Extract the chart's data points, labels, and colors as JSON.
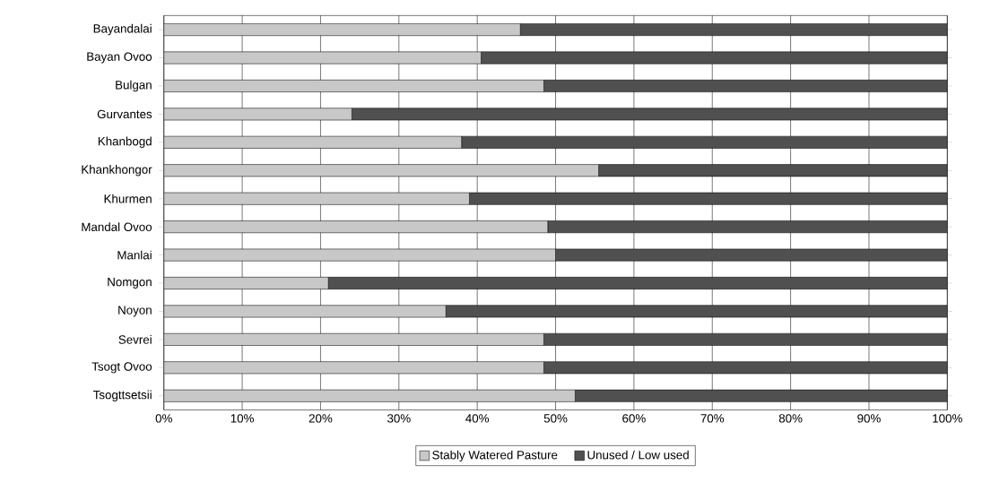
{
  "chart_data": {
    "type": "bar",
    "orientation": "horizontal",
    "stacked": true,
    "categories": [
      "Bayandalai",
      "Bayan Ovoo",
      "Bulgan",
      "Gurvantes",
      "Khanbogd",
      "Khankhongor",
      "Khurmen",
      "Mandal Ovoo",
      "Manlai",
      "Nomgon",
      "Noyon",
      "Sevrei",
      "Tsogt Ovoo",
      "Tsogttsetsii"
    ],
    "series": [
      {
        "name": "Stably Watered Pasture",
        "color": "#c8c8c8",
        "values": [
          45.5,
          40.5,
          48.5,
          24,
          38,
          55.5,
          39,
          49,
          50,
          21,
          36,
          48.5,
          48.5,
          52.5
        ]
      },
      {
        "name": "Unused / Low used",
        "color": "#505050",
        "values": [
          54.5,
          59.5,
          51.5,
          76,
          62,
          44.5,
          61,
          51,
          50,
          79,
          64,
          51.5,
          51.5,
          47.5
        ]
      }
    ],
    "xlim": [
      0,
      100
    ],
    "xticks": [
      {
        "value": 0,
        "label": "0%"
      },
      {
        "value": 10,
        "label": "10%"
      },
      {
        "value": 20,
        "label": "20%"
      },
      {
        "value": 30,
        "label": "30%"
      },
      {
        "value": 40,
        "label": "40%"
      },
      {
        "value": 50,
        "label": "50%"
      },
      {
        "value": 60,
        "label": "60%"
      },
      {
        "value": 70,
        "label": "70%"
      },
      {
        "value": 80,
        "label": "80%"
      },
      {
        "value": 90,
        "label": "90%"
      },
      {
        "value": 100,
        "label": "100%"
      }
    ],
    "grid": "x",
    "legend": "bottom"
  }
}
